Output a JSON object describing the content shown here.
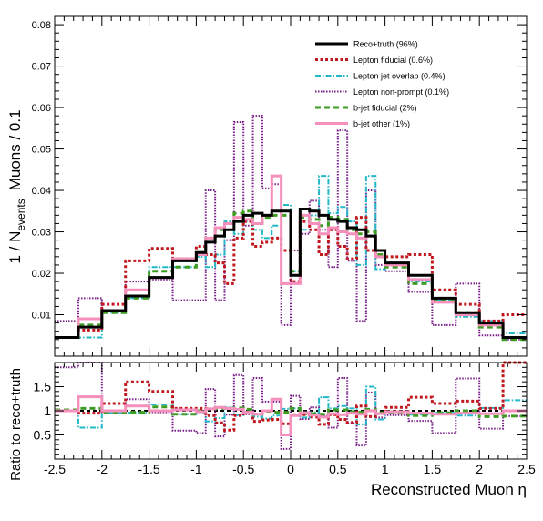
{
  "chart_data": [
    {
      "type": "line",
      "step": true,
      "panel": "main",
      "ylabel": "1 / N",
      "ylabel_sub": "events",
      "ylabel_suffix": "Muons / 0.1",
      "xlim": [
        -2.5,
        2.5
      ],
      "ylim": [
        0,
        0.082
      ],
      "yticks": [
        0.01,
        0.02,
        0.03,
        0.04,
        0.05,
        0.06,
        0.07,
        0.08
      ],
      "ytick_labels": [
        "0.01",
        "0.02",
        "0.03",
        "0.04",
        "0.05",
        "0.06",
        "0.07",
        "0.08"
      ],
      "legend_position": "top-right",
      "bin_edges": [
        -2.5,
        -2.25,
        -2.0,
        -1.75,
        -1.5,
        -1.25,
        -1.0,
        -0.9,
        -0.8,
        -0.7,
        -0.6,
        -0.5,
        -0.4,
        -0.3,
        -0.2,
        -0.1,
        0.0,
        0.1,
        0.2,
        0.3,
        0.4,
        0.5,
        0.6,
        0.7,
        0.8,
        0.9,
        1.0,
        1.25,
        1.5,
        1.75,
        2.0,
        2.25,
        2.5
      ],
      "series": [
        {
          "name": "Reco+truth (96%)",
          "color": "#000000",
          "dash": "",
          "width": 3,
          "values": [
            0.0045,
            0.007,
            0.011,
            0.0145,
            0.019,
            0.023,
            0.025,
            0.0275,
            0.029,
            0.0305,
            0.0325,
            0.034,
            0.0345,
            0.034,
            0.035,
            0.035,
            0.0195,
            0.0355,
            0.035,
            0.034,
            0.033,
            0.0325,
            0.031,
            0.0305,
            0.029,
            0.0255,
            0.0225,
            0.0195,
            0.014,
            0.0105,
            0.008,
            0.0045
          ]
        },
        {
          "name": "Lepton fiducial (0.6%)",
          "color": "#c0181e",
          "dash": "3,2.5",
          "width": 3,
          "values": [
            0.0045,
            0.0063,
            0.0125,
            0.023,
            0.026,
            0.0235,
            0.0265,
            0.0245,
            0.0225,
            0.0175,
            0.0285,
            0.0325,
            0.0265,
            0.0275,
            0.0285,
            0.0255,
            0.018,
            0.0325,
            0.0305,
            0.0245,
            0.0305,
            0.0265,
            0.0235,
            0.0335,
            0.0255,
            0.024,
            0.024,
            0.0245,
            0.016,
            0.0125,
            0.0085,
            0.01
          ]
        },
        {
          "name": "Lepton jet overlap (0.4%)",
          "color": "#22b8c8",
          "dash": "6,2,1.5,2",
          "width": 2,
          "values": [
            0.0045,
            0.0045,
            0.0105,
            0.014,
            0.0215,
            0.0215,
            0.024,
            0.0215,
            0.0245,
            0.0325,
            0.0295,
            0.0325,
            0.0305,
            0.0285,
            0.0315,
            0.0365,
            0.0205,
            0.0305,
            0.034,
            0.0435,
            0.0345,
            0.036,
            0.0325,
            0.022,
            0.0435,
            0.021,
            0.022,
            0.018,
            0.0135,
            0.0095,
            0.0085,
            0.0055
          ]
        },
        {
          "name": "Lepton non-prompt (0.1%)",
          "color": "#7a1f8a",
          "dash": "1.5,1.5",
          "width": 2,
          "values": [
            0.0085,
            0.014,
            0.011,
            0.018,
            0.0185,
            0.0135,
            0.0135,
            0.04,
            0.0135,
            0.028,
            0.0565,
            0.0315,
            0.058,
            0.0405,
            0.0415,
            0.0075,
            0.0255,
            0.0295,
            0.0375,
            0.0305,
            0.0215,
            0.0545,
            0.023,
            0.0085,
            0.04,
            0.022,
            0.0205,
            0.0155,
            0.0075,
            0.0175,
            0.005,
            0.004
          ]
        },
        {
          "name": "b-jet fiducial (2%)",
          "color": "#3e9c23",
          "dash": "6,4",
          "width": 3,
          "values": [
            0.0045,
            0.0075,
            0.0105,
            0.014,
            0.0205,
            0.0215,
            0.025,
            0.0285,
            0.0305,
            0.032,
            0.0345,
            0.035,
            0.032,
            0.0335,
            0.034,
            0.034,
            0.0205,
            0.0335,
            0.033,
            0.0315,
            0.0335,
            0.033,
            0.0305,
            0.0295,
            0.03,
            0.0245,
            0.0215,
            0.0175,
            0.0135,
            0.0105,
            0.007,
            0.004
          ]
        },
        {
          "name": "b-jet other (1%)",
          "color": "#f58fbb",
          "dash": "",
          "width": 3,
          "values": [
            0.0045,
            0.009,
            0.011,
            0.016,
            0.019,
            0.0235,
            0.0245,
            0.0285,
            0.031,
            0.032,
            0.0335,
            0.033,
            0.032,
            0.034,
            0.0435,
            0.0175,
            0.0175,
            0.034,
            0.032,
            0.0295,
            0.031,
            0.03,
            0.0295,
            0.0285,
            0.029,
            0.024,
            0.022,
            0.0185,
            0.013,
            0.01,
            0.0075,
            0.0045
          ]
        }
      ]
    },
    {
      "type": "line",
      "step": true,
      "panel": "ratio",
      "ylabel": "Ratio to reco+truth",
      "xlabel": "Reconstructed Muon η",
      "xlim": [
        -2.5,
        2.5
      ],
      "ylim": [
        0,
        2.0
      ],
      "yticks": [
        0.5,
        1.0,
        1.5
      ],
      "ytick_labels": [
        "0.5",
        "1",
        "1.5"
      ],
      "xticks": [
        -2.5,
        -2,
        -1.5,
        -1,
        -0.5,
        0,
        0.5,
        1,
        1.5,
        2,
        2.5
      ],
      "xtick_labels": [
        "-2.5",
        "-2",
        "-1.5",
        "-1",
        "-0.5",
        "0",
        "0.5",
        "1",
        "1.5",
        "2",
        "2.5"
      ],
      "reference_line": 1.0,
      "bin_edges": [
        -2.5,
        -2.25,
        -2.0,
        -1.75,
        -1.5,
        -1.25,
        -1.0,
        -0.9,
        -0.8,
        -0.7,
        -0.6,
        -0.5,
        -0.4,
        -0.3,
        -0.2,
        -0.1,
        0.0,
        0.1,
        0.2,
        0.3,
        0.4,
        0.5,
        0.6,
        0.7,
        0.8,
        0.9,
        1.0,
        1.25,
        1.5,
        1.75,
        2.0,
        2.25,
        2.5
      ],
      "series": [
        {
          "name": "Lepton fiducial (0.6%)",
          "color": "#c0181e",
          "dash": "3,2.5",
          "width": 3,
          "values": [
            1.0,
            0.95,
            1.15,
            1.6,
            1.4,
            1.05,
            1.05,
            0.9,
            0.75,
            0.6,
            0.9,
            0.95,
            0.78,
            0.81,
            0.82,
            0.73,
            0.92,
            0.92,
            0.87,
            0.72,
            0.92,
            0.82,
            0.76,
            1.1,
            0.88,
            0.94,
            1.07,
            1.28,
            1.15,
            1.2,
            1.05,
            2.0
          ]
        },
        {
          "name": "Lepton jet overlap (0.4%)",
          "color": "#22b8c8",
          "dash": "6,2,1.5,2",
          "width": 2,
          "values": [
            1.0,
            0.65,
            0.95,
            0.96,
            1.13,
            0.93,
            0.96,
            0.78,
            0.85,
            1.07,
            0.91,
            0.96,
            0.88,
            0.84,
            0.9,
            1.04,
            1.05,
            0.86,
            0.97,
            1.28,
            1.05,
            1.1,
            1.05,
            0.72,
            1.5,
            0.82,
            0.98,
            0.92,
            0.96,
            0.9,
            1.06,
            1.22
          ]
        },
        {
          "name": "Lepton non-prompt (0.1%)",
          "color": "#7a1f8a",
          "dash": "1.5,1.5",
          "width": 2,
          "values": [
            1.9,
            2.0,
            1.0,
            1.24,
            0.97,
            0.59,
            0.54,
            1.45,
            0.47,
            0.92,
            1.74,
            0.93,
            1.68,
            1.19,
            1.19,
            0.21,
            1.31,
            0.83,
            1.07,
            0.9,
            0.65,
            1.68,
            0.74,
            0.28,
            1.38,
            0.86,
            0.91,
            0.79,
            0.54,
            1.67,
            0.63,
            0.89
          ]
        },
        {
          "name": "b-jet fiducial (2%)",
          "color": "#3e9c23",
          "dash": "6,4",
          "width": 3,
          "values": [
            1.02,
            1.05,
            0.96,
            0.97,
            1.08,
            0.93,
            1.0,
            1.04,
            1.05,
            1.05,
            1.06,
            1.03,
            0.93,
            0.99,
            0.97,
            0.97,
            1.05,
            0.94,
            0.94,
            0.93,
            1.02,
            1.02,
            0.98,
            0.97,
            1.03,
            0.96,
            0.96,
            0.9,
            0.96,
            1.0,
            0.88,
            0.89
          ]
        },
        {
          "name": "b-jet other (1%)",
          "color": "#f58fbb",
          "dash": "",
          "width": 3,
          "values": [
            1.0,
            1.29,
            1.0,
            1.1,
            1.0,
            1.02,
            0.98,
            1.04,
            1.07,
            1.05,
            1.03,
            0.97,
            0.93,
            1.0,
            1.24,
            0.5,
            0.9,
            0.96,
            0.91,
            0.87,
            0.94,
            0.92,
            0.95,
            0.93,
            1.0,
            0.94,
            0.98,
            0.95,
            0.93,
            0.95,
            0.94,
            1.0
          ]
        }
      ]
    }
  ]
}
